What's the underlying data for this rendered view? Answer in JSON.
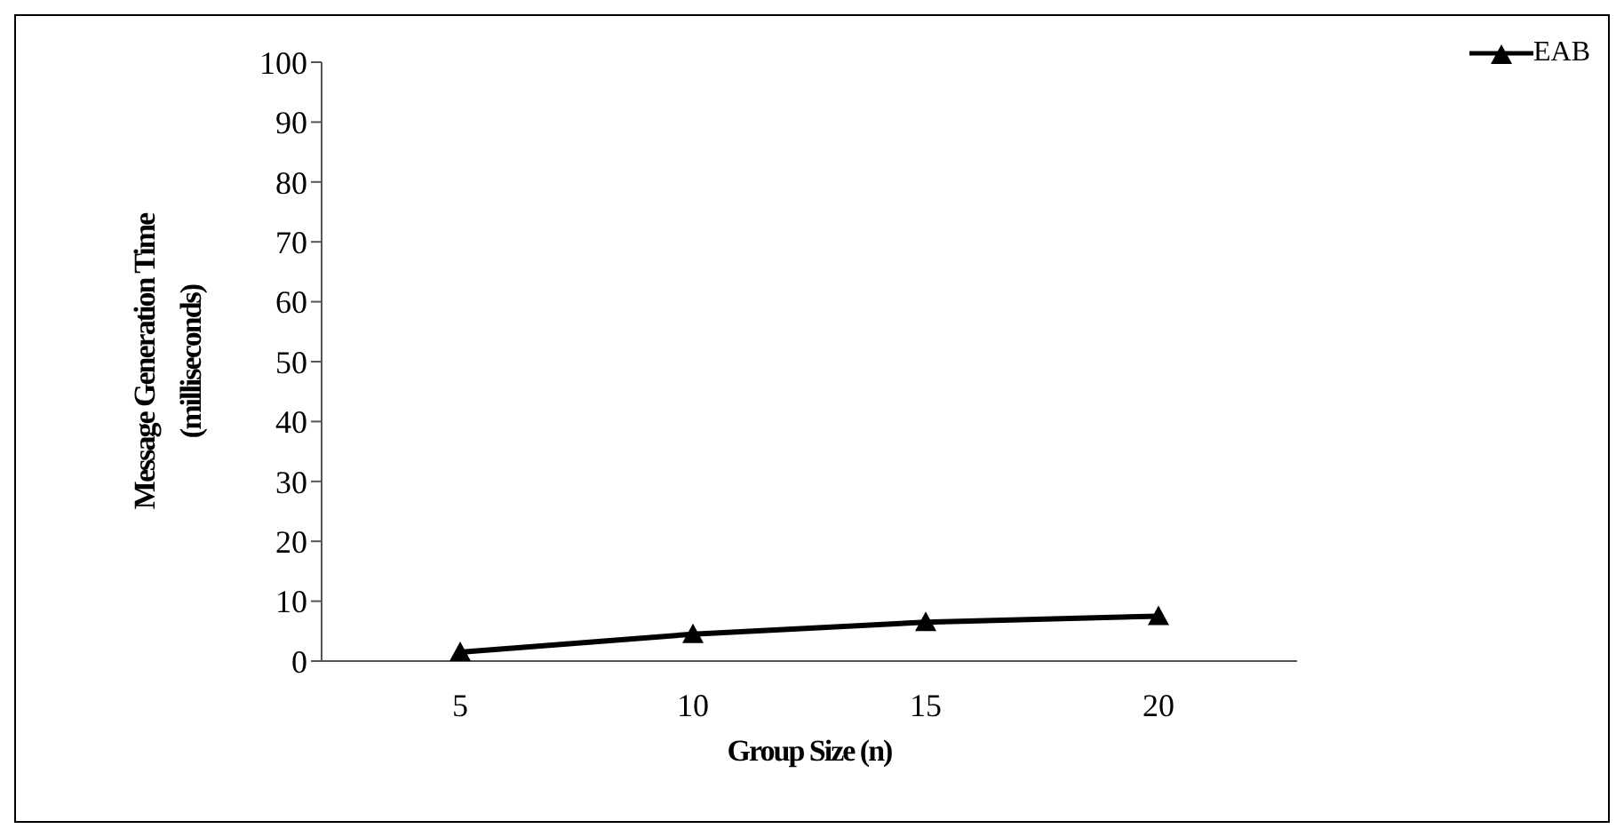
{
  "chart_data": {
    "type": "line",
    "xlabel": "Group Size (n)",
    "ylabel": "Message Generation Time\n(milliseconds)",
    "categories": [
      "5",
      "10",
      "15",
      "20"
    ],
    "series": [
      {
        "name": "EAB",
        "color": "#000000",
        "values": [
          1.5,
          4.5,
          6.5,
          7.5
        ]
      }
    ],
    "ylim": [
      0,
      100
    ],
    "yticks": [
      0,
      10,
      20,
      30,
      40,
      50,
      60,
      70,
      80,
      90,
      100
    ],
    "grid": false,
    "legend": "top right",
    "marker": "triangle",
    "line_style": "solid"
  }
}
